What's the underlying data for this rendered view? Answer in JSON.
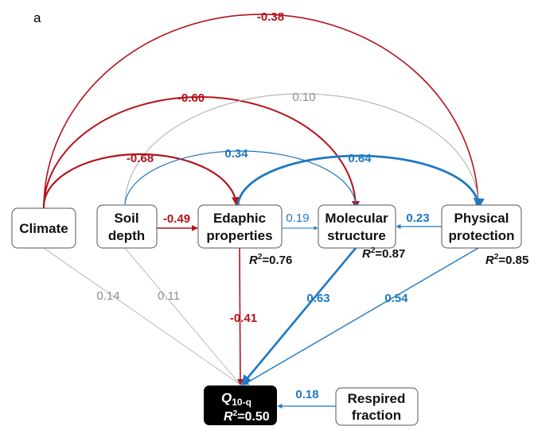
{
  "panel_label": "a",
  "colors": {
    "negative": "#b5121b",
    "positive": "#1f78c1",
    "nonsignificant": "#8c8c8c",
    "response_box": "#000000"
  },
  "nodes": {
    "climate": {
      "line1": "Climate"
    },
    "soil_depth": {
      "line1": "Soil",
      "line2": "depth"
    },
    "edaphic": {
      "line1": "Edaphic",
      "line2": "properties",
      "r2": "=0.76"
    },
    "molecular": {
      "line1": "Molecular",
      "line2": "structure",
      "r2": "=0.87"
    },
    "physical": {
      "line1": "Physical",
      "line2": "protection",
      "r2": "=0.85"
    },
    "q10": {
      "symbol": "Q",
      "subscript": "10-q",
      "r2": "=0.50"
    },
    "respired": {
      "line1": "Respired",
      "line2": "fraction"
    }
  },
  "r2_symbol": "R",
  "r2_superscript": "2",
  "paths": [
    {
      "from": "Climate",
      "to": "Physical protection",
      "coef": "-0.38"
    },
    {
      "from": "Climate",
      "to": "Molecular structure",
      "coef": "-0.60"
    },
    {
      "from": "Soil depth",
      "to": "Physical protection",
      "coef": "0.10"
    },
    {
      "from": "Climate",
      "to": "Edaphic properties",
      "coef": "-0.68"
    },
    {
      "from": "Soil depth",
      "to": "Molecular structure",
      "coef": "0.34"
    },
    {
      "from": "Edaphic properties",
      "to": "Physical protection",
      "coef": "0.64"
    },
    {
      "from": "Soil depth",
      "to": "Edaphic properties",
      "coef": "-0.49"
    },
    {
      "from": "Edaphic properties",
      "to": "Molecular structure",
      "coef": "0.19"
    },
    {
      "from": "Physical protection",
      "to": "Molecular structure",
      "coef": "0.23"
    },
    {
      "from": "Climate",
      "to": "Q10-q",
      "coef": "0.14"
    },
    {
      "from": "Soil depth",
      "to": "Q10-q",
      "coef": "0.11"
    },
    {
      "from": "Edaphic properties",
      "to": "Q10-q",
      "coef": "-0.41"
    },
    {
      "from": "Molecular structure",
      "to": "Q10-q",
      "coef": "0.63"
    },
    {
      "from": "Physical protection",
      "to": "Q10-q",
      "coef": "0.54"
    },
    {
      "from": "Respired fraction",
      "to": "Q10-q",
      "coef": "0.18"
    }
  ]
}
